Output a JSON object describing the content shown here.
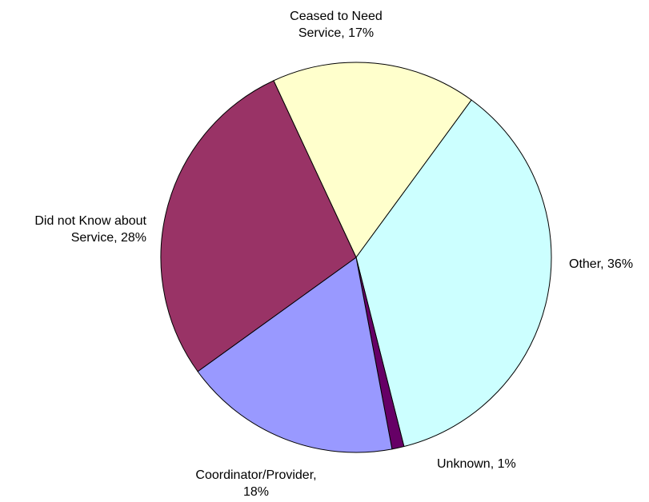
{
  "chart_data": {
    "type": "pie",
    "title": "",
    "slices": [
      {
        "label": "Ceased to Need Service",
        "value": 17,
        "display_value": "17%",
        "color": "#ffffcc"
      },
      {
        "label": "Other",
        "value": 36,
        "display_value": "36%",
        "color": "#ccffff"
      },
      {
        "label": "Unknown",
        "value": 1,
        "display_value": "1%",
        "color": "#660066"
      },
      {
        "label": "Coordinator/Provider",
        "value": 18,
        "display_value": "18%",
        "color": "#9999ff"
      },
      {
        "label": "Did not Know about Service",
        "value": 28,
        "display_value": "28%",
        "color": "#993366"
      }
    ],
    "data_labels": [
      [
        "Ceased to Need",
        "Service, 17%"
      ],
      [
        "Other, 36%"
      ],
      [
        "Unknown, 1%"
      ],
      [
        "Coordinator/Provider,",
        "18%"
      ],
      [
        "Did not Know about",
        "Service, 28%"
      ]
    ],
    "legend": "none",
    "start_angle_deg": -115,
    "direction": "clockwise"
  }
}
